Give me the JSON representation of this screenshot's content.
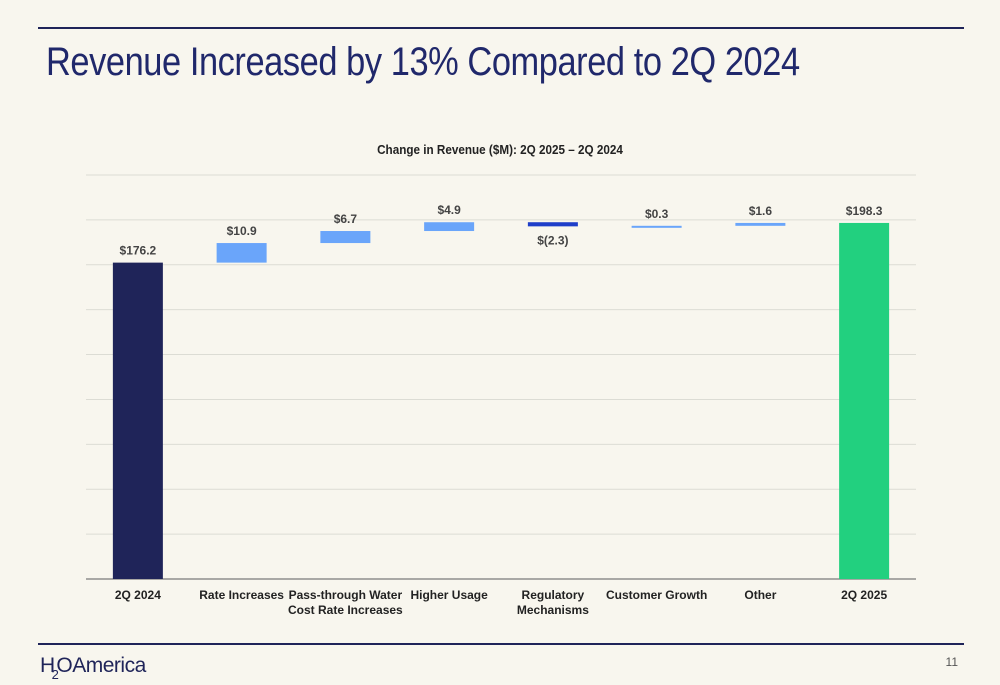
{
  "slide": {
    "title": "Revenue Increased by 13% Compared to 2Q 2024",
    "page_number": "11",
    "logo_text": "America",
    "logo_mark_h": "H",
    "logo_mark_2": "2",
    "logo_mark_o": "O"
  },
  "colors": {
    "title": "#20286b",
    "start_bar": "#1f2459",
    "increase_bar": "#6aa5fa",
    "decrease_bar": "#1e3ec9",
    "end_bar": "#22d07f",
    "grid": "#dcdcd4",
    "axis": "#7a7a7a"
  },
  "chart_data": {
    "type": "bar",
    "subtype": "waterfall",
    "title": "Change in Revenue ($M): 2Q 2025 – 2Q 2024",
    "categories": [
      "2Q 2024",
      "Rate Increases",
      "Pass-through Water Cost Rate Increases",
      "Higher Usage",
      "Regulatory Mechanisms",
      "Customer Growth",
      "Other",
      "2Q 2025"
    ],
    "category_lines": [
      [
        "2Q 2024"
      ],
      [
        "Rate Increases"
      ],
      [
        "Pass-through Water",
        "Cost Rate Increases"
      ],
      [
        "Higher Usage"
      ],
      [
        "Regulatory",
        "Mechanisms"
      ],
      [
        "Customer Growth"
      ],
      [
        "Other"
      ],
      [
        "2Q 2025"
      ]
    ],
    "values": [
      176.2,
      10.9,
      6.7,
      4.9,
      -2.3,
      0.3,
      1.6,
      198.3
    ],
    "kinds": [
      "total",
      "delta",
      "delta",
      "delta",
      "delta",
      "delta",
      "delta",
      "total"
    ],
    "data_labels": [
      "$176.2",
      "$10.9",
      "$6.7",
      "$4.9",
      "$(2.3)",
      "$0.3",
      "$1.6",
      "$198.3"
    ],
    "ylim": [
      0,
      225
    ],
    "gridlines": [
      0,
      25,
      50,
      75,
      100,
      125,
      150,
      175,
      200,
      225
    ],
    "grid": true,
    "legend": "none",
    "xlabel": "",
    "ylabel": ""
  }
}
